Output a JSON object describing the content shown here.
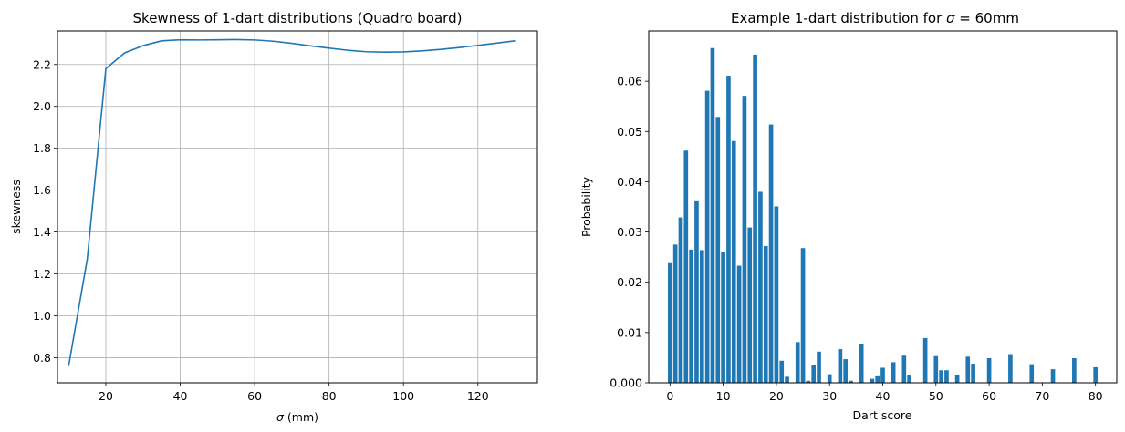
{
  "chart_data": [
    {
      "type": "line",
      "title": "Skewness of 1-dart distributions (Quadro board)",
      "xlabel_symbol": "σ",
      "xlabel_rest": " (mm)",
      "ylabel": "skewness",
      "grid": true,
      "xlim": [
        7,
        136
      ],
      "ylim": [
        0.68,
        2.36
      ],
      "xticks": [
        20,
        40,
        60,
        80,
        100,
        120
      ],
      "xtick_labels": [
        "20",
        "40",
        "60",
        "80",
        "100",
        "120"
      ],
      "yticks": [
        0.8,
        1.0,
        1.2,
        1.4,
        1.6,
        1.8,
        2.0,
        2.2
      ],
      "ytick_labels": [
        "0.8",
        "1.0",
        "1.2",
        "1.4",
        "1.6",
        "1.8",
        "2.0",
        "2.2"
      ],
      "color": "#1f77b4",
      "series": [
        {
          "x": [
            10,
            15,
            20,
            25,
            30,
            35,
            40,
            45,
            50,
            55,
            60,
            65,
            70,
            75,
            80,
            85,
            90,
            95,
            100,
            105,
            110,
            115,
            120,
            125,
            130
          ],
          "y": [
            0.76,
            1.27,
            2.18,
            2.255,
            2.29,
            2.313,
            2.318,
            2.317,
            2.318,
            2.319,
            2.317,
            2.311,
            2.301,
            2.289,
            2.278,
            2.268,
            2.261,
            2.259,
            2.26,
            2.265,
            2.272,
            2.281,
            2.291,
            2.302,
            2.313
          ]
        }
      ]
    },
    {
      "type": "bar",
      "title_prefix": "Example 1-dart distribution for ",
      "title_symbol": "σ",
      "title_suffix": " = 60mm",
      "xlabel": "Dart score",
      "ylabel": "Probability",
      "grid": false,
      "xlim": [
        -4,
        84
      ],
      "ylim": [
        0,
        0.07
      ],
      "xticks": [
        0,
        10,
        20,
        30,
        40,
        50,
        60,
        70,
        80
      ],
      "xtick_labels": [
        "0",
        "10",
        "20",
        "30",
        "40",
        "50",
        "60",
        "70",
        "80"
      ],
      "yticks": [
        0,
        0.01,
        0.02,
        0.03,
        0.04,
        0.05,
        0.06
      ],
      "ytick_labels": [
        "0.000",
        "0.01",
        "0.02",
        "0.03",
        "0.04",
        "0.05",
        "0.06"
      ],
      "color": "#1f77b4",
      "x": [
        0,
        1,
        2,
        3,
        4,
        5,
        6,
        7,
        8,
        9,
        10,
        11,
        12,
        13,
        14,
        15,
        16,
        17,
        18,
        19,
        20,
        21,
        22,
        24,
        25,
        26,
        27,
        28,
        30,
        32,
        33,
        34,
        36,
        38,
        39,
        40,
        42,
        44,
        45,
        48,
        50,
        51,
        52,
        54,
        56,
        57,
        60,
        64,
        68,
        72,
        76,
        80
      ],
      "values": [
        0.0238,
        0.0275,
        0.0329,
        0.0462,
        0.0265,
        0.0363,
        0.0264,
        0.0581,
        0.0666,
        0.0529,
        0.0261,
        0.0611,
        0.0481,
        0.0233,
        0.0571,
        0.0309,
        0.0653,
        0.038,
        0.0272,
        0.0514,
        0.0351,
        0.0044,
        0.0012,
        0.0081,
        0.0268,
        0.0004,
        0.0036,
        0.0062,
        0.0017,
        0.0067,
        0.0047,
        0.0004,
        0.0078,
        0.0008,
        0.0013,
        0.003,
        0.0041,
        0.0054,
        0.0016,
        0.0089,
        0.0053,
        0.0025,
        0.0025,
        0.0015,
        0.0052,
        0.0038,
        0.0049,
        0.0057,
        0.0037,
        0.0027,
        0.0049,
        0.0031
      ]
    }
  ]
}
